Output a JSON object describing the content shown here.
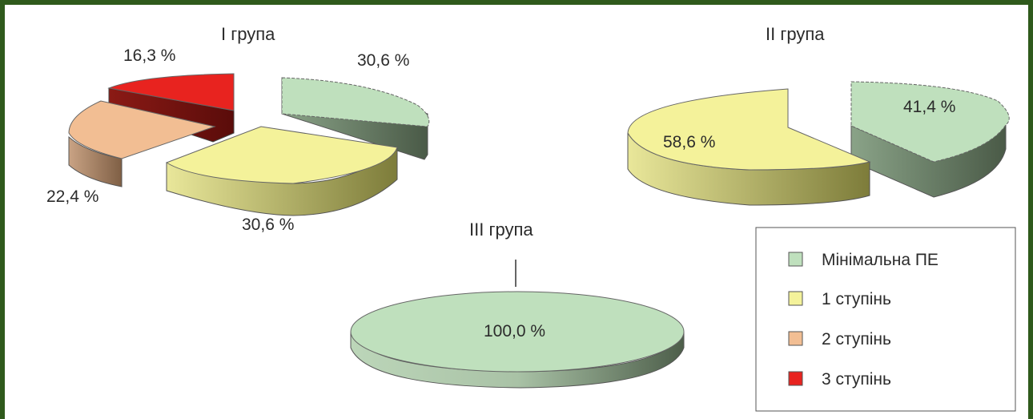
{
  "chart_data": [
    {
      "type": "pie",
      "title": "I група",
      "slices": [
        {
          "name": "Мінімальна ПЕ",
          "value": 30.6,
          "label": "30,6 %"
        },
        {
          "name": "1 ступінь",
          "value": 30.6,
          "label": "30,6 %"
        },
        {
          "name": "2 ступінь",
          "value": 22.4,
          "label": "22,4 %"
        },
        {
          "name": "3 ступінь",
          "value": 16.3,
          "label": "16,3 %"
        }
      ],
      "style": "3d-exploded"
    },
    {
      "type": "pie",
      "title": "II група",
      "slices": [
        {
          "name": "Мінімальна ПЕ",
          "value": 41.4,
          "label": "41,4 %"
        },
        {
          "name": "1 ступінь",
          "value": 58.6,
          "label": "58,6 %"
        }
      ],
      "style": "3d-exploded"
    },
    {
      "type": "pie",
      "title": "III група",
      "slices": [
        {
          "name": "Мінімальна ПЕ",
          "value": 100.0,
          "label": "100,0 %"
        }
      ],
      "style": "3d"
    }
  ],
  "legend": {
    "placement": "bottom-right",
    "items": [
      {
        "label": "Мінімальна ПЕ",
        "color": "#bfe0bd"
      },
      {
        "label": "1 ступінь",
        "color": "#f4f29a"
      },
      {
        "label": "2 ступінь",
        "color": "#f2be93"
      },
      {
        "label": "3 ступінь",
        "color": "#e8231f"
      }
    ]
  },
  "colors": {
    "minimal_top": "#bfe0bd",
    "minimal_side": "#4d5e4a",
    "first_top": "#f4f29a",
    "first_side": "#8a8a3e",
    "second_top": "#f2be93",
    "second_side": "#8e6a4c",
    "third_top": "#e8231f",
    "third_side": "#6a1010",
    "frame": "#2f5a1c"
  }
}
